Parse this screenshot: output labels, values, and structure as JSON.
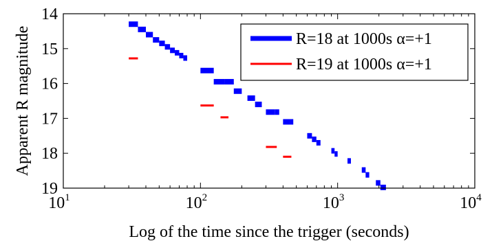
{
  "chart_data": {
    "type": "scatter",
    "title": "",
    "xlabel": "Log of the time since the trigger (seconds)",
    "ylabel": "Apparent R magnitude",
    "xscale": "log",
    "xlim": [
      10,
      10000
    ],
    "ylim": [
      14,
      19
    ],
    "y_inverted": true,
    "grid": false,
    "legend_position": "top-right",
    "x_ticks": [
      {
        "base": "10",
        "exp": "1",
        "value": 10
      },
      {
        "base": "10",
        "exp": "2",
        "value": 100
      },
      {
        "base": "10",
        "exp": "3",
        "value": 1000
      },
      {
        "base": "10",
        "exp": "4",
        "value": 10000
      }
    ],
    "y_ticks": [
      "14",
      "15",
      "16",
      "17",
      "18",
      "19"
    ],
    "series": [
      {
        "name": "R=18 at 1000s α=+1",
        "color": "#0000ff",
        "marker": "horizontal-bar-thick",
        "segments": [
          [
            30,
            35,
            14.3
          ],
          [
            35,
            40,
            14.45
          ],
          [
            40,
            45,
            14.6
          ],
          [
            45,
            50,
            14.75
          ],
          [
            50,
            55,
            14.85
          ],
          [
            55,
            60,
            14.95
          ],
          [
            60,
            65,
            15.05
          ],
          [
            65,
            70,
            15.12
          ],
          [
            70,
            75,
            15.2
          ],
          [
            75,
            80,
            15.27
          ],
          [
            100,
            125,
            15.63
          ],
          [
            125,
            150,
            15.95
          ],
          [
            150,
            175,
            15.95
          ],
          [
            175,
            200,
            16.22
          ],
          [
            220,
            250,
            16.42
          ],
          [
            250,
            280,
            16.6
          ],
          [
            300,
            350,
            16.82
          ],
          [
            350,
            375,
            16.82
          ],
          [
            400,
            450,
            17.1
          ],
          [
            450,
            475,
            17.1
          ],
          [
            600,
            650,
            17.5
          ],
          [
            650,
            700,
            17.6
          ],
          [
            700,
            750,
            17.7
          ],
          [
            900,
            950,
            17.93
          ],
          [
            950,
            1000,
            18.02
          ],
          [
            1180,
            1250,
            18.22
          ],
          [
            1500,
            1600,
            18.48
          ],
          [
            1600,
            1700,
            18.62
          ],
          [
            1900,
            2050,
            18.85
          ],
          [
            2050,
            2250,
            18.98
          ]
        ]
      },
      {
        "name": "R=19 at 1000s α=+1",
        "color": "#ff0000",
        "marker": "horizontal-bar-thin",
        "segments": [
          [
            30,
            35,
            15.28
          ],
          [
            100,
            125,
            16.63
          ],
          [
            140,
            160,
            16.97
          ],
          [
            300,
            360,
            17.82
          ],
          [
            400,
            460,
            18.1
          ]
        ]
      }
    ]
  }
}
